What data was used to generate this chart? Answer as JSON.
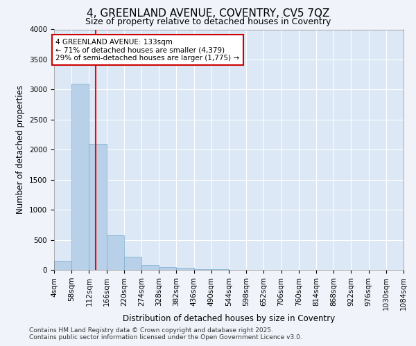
{
  "title1": "4, GREENLAND AVENUE, COVENTRY, CV5 7QZ",
  "title2": "Size of property relative to detached houses in Coventry",
  "xlabel": "Distribution of detached houses by size in Coventry",
  "ylabel": "Number of detached properties",
  "bin_edges": [
    4,
    58,
    112,
    166,
    220,
    274,
    328,
    382,
    436,
    490,
    544,
    598,
    652,
    706,
    760,
    814,
    868,
    922,
    976,
    1030,
    1084
  ],
  "bar_heights": [
    150,
    3100,
    2100,
    580,
    220,
    80,
    50,
    30,
    15,
    8,
    5,
    3,
    2,
    2,
    1,
    1,
    1,
    0,
    0,
    0
  ],
  "bar_color": "#b8d0e8",
  "bar_edgecolor": "#7aaed0",
  "red_line_x": 133,
  "annotation_text": "4 GREENLAND AVENUE: 133sqm\n← 71% of detached houses are smaller (4,379)\n29% of semi-detached houses are larger (1,775) →",
  "annotation_box_edgecolor": "#cc0000",
  "annotation_box_facecolor": "#ffffff",
  "ylim": [
    0,
    4000
  ],
  "yticks": [
    0,
    500,
    1000,
    1500,
    2000,
    2500,
    3000,
    3500,
    4000
  ],
  "bg_color": "#f0f4fa",
  "plot_bg_color": "#dce8f5",
  "footer_line1": "Contains HM Land Registry data © Crown copyright and database right 2025.",
  "footer_line2": "Contains public sector information licensed under the Open Government Licence v3.0.",
  "title1_fontsize": 11,
  "title2_fontsize": 9,
  "xlabel_fontsize": 8.5,
  "ylabel_fontsize": 8.5,
  "tick_fontsize": 7.5,
  "annotation_fontsize": 7.5,
  "footer_fontsize": 6.5
}
